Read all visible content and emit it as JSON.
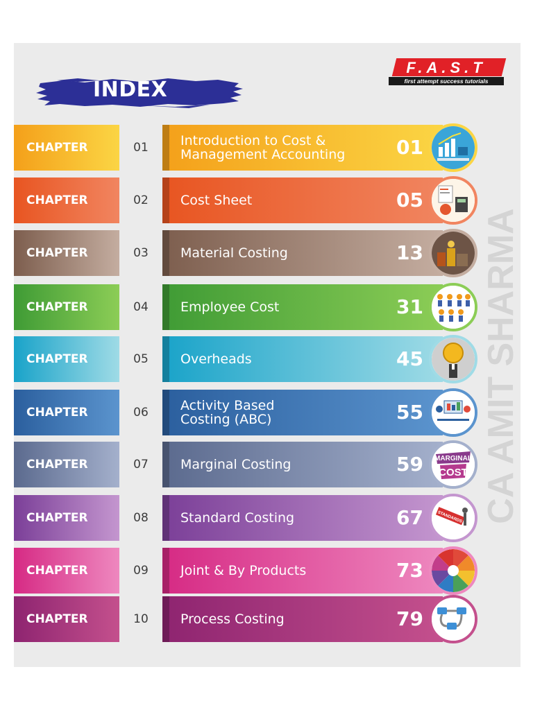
{
  "header": {
    "index_title": "INDEX",
    "logo_word": "F.A.S.T",
    "logo_tagline": "first attempt success tutorials",
    "watermark": "CA AMIT SHARMA",
    "brush_color": "#2c2f96"
  },
  "chapters": [
    {
      "label": "CHAPTER",
      "number": "01",
      "title_lines": [
        "Introduction to Cost &",
        "Management Accounting"
      ],
      "page": "01",
      "color_a": "#f4a01a",
      "color_b": "#fbd544",
      "icon": "cost-accounting-icon"
    },
    {
      "label": "CHAPTER",
      "number": "02",
      "title_lines": [
        "Cost Sheet"
      ],
      "page": "05",
      "color_a": "#e85521",
      "color_b": "#f18560",
      "icon": "accounting-desk-icon"
    },
    {
      "label": "CHAPTER",
      "number": "03",
      "title_lines": [
        "Material Costing"
      ],
      "page": "13",
      "color_a": "#7d5e4e",
      "color_b": "#c4ada0",
      "icon": "materials-icon"
    },
    {
      "label": "CHAPTER",
      "number": "04",
      "title_lines": [
        "Employee Cost"
      ],
      "page": "31",
      "color_a": "#3f9b35",
      "color_b": "#8ccd56",
      "icon": "employees-icon"
    },
    {
      "label": "CHAPTER",
      "number": "05",
      "title_lines": [
        "Overheads"
      ],
      "page": "45",
      "color_a": "#19a3c9",
      "color_b": "#9fdbe6",
      "icon": "overhead-coin-icon"
    },
    {
      "label": "CHAPTER",
      "number": "06",
      "title_lines": [
        "Activity Based",
        "Costing (ABC)"
      ],
      "page": "55",
      "color_a": "#2b5f9e",
      "color_b": "#5b94ce",
      "icon": "activity-costing-icon"
    },
    {
      "label": "CHAPTER",
      "number": "07",
      "title_lines": [
        "Marginal Costing"
      ],
      "page": "59",
      "color_a": "#5b6a8e",
      "color_b": "#a4b0cc",
      "icon": "marginal-cost-icon"
    },
    {
      "label": "CHAPTER",
      "number": "08",
      "title_lines": [
        "Standard Costing"
      ],
      "page": "67",
      "color_a": "#7b3f98",
      "color_b": "#c496cf",
      "icon": "standards-icon"
    },
    {
      "label": "CHAPTER",
      "number": "09",
      "title_lines": [
        "Joint & By Products"
      ],
      "page": "73",
      "color_a": "#d62a84",
      "color_b": "#ee88bf",
      "icon": "joint-products-icon"
    },
    {
      "label": "CHAPTER",
      "number": "10",
      "title_lines": [
        "Process Costing"
      ],
      "page": "79",
      "color_a": "#8e2470",
      "color_b": "#c4508d",
      "icon": "process-flow-icon"
    }
  ],
  "icon_texts": {
    "marginal_top": "MARGINAL",
    "marginal_bottom": "COST",
    "standards": "STANDARDS"
  }
}
